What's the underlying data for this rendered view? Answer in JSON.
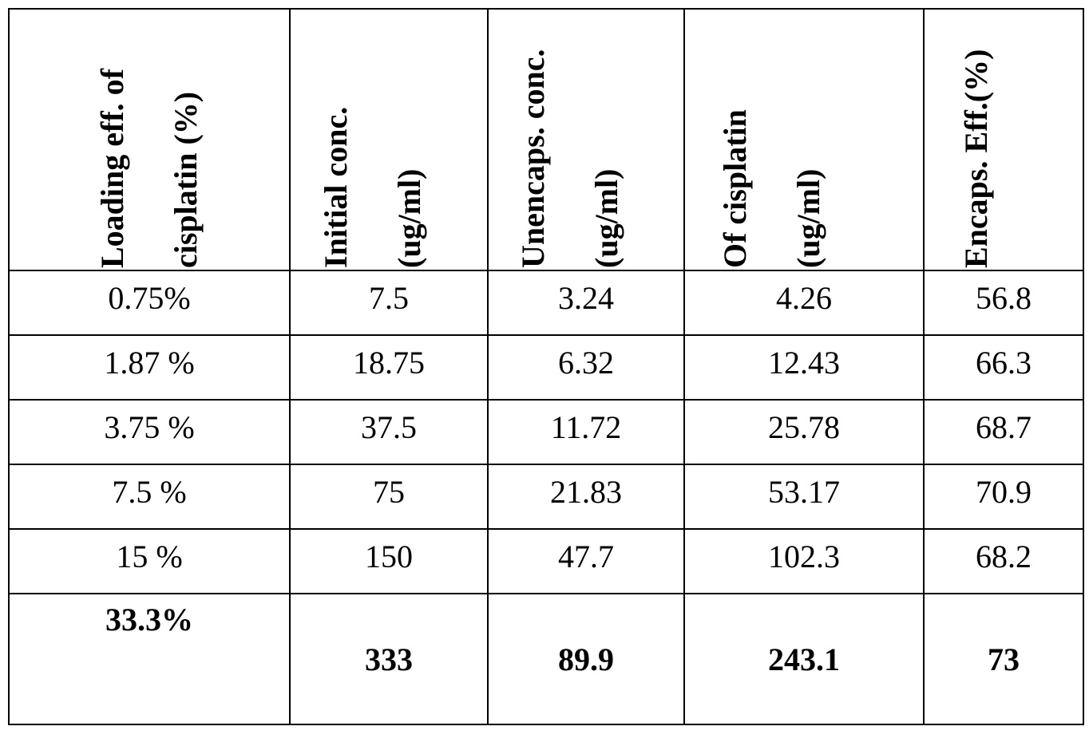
{
  "headers": [
    {
      "line1": "Loading eff. of",
      "line2": "cisplatin (%)"
    },
    {
      "line1": "Initial conc.",
      "line2": "(ug/ml)"
    },
    {
      "line1": "Unencaps. conc.",
      "line2": "(ug/ml)"
    },
    {
      "line1": "Of cisplatin",
      "line2": "(ug/ml)"
    },
    {
      "line1": "Encaps. Eff.(%)",
      "line2": ""
    }
  ],
  "rows": [
    [
      "0.75%",
      "7.5",
      "3.24",
      "4.26",
      "56.8"
    ],
    [
      "1.87 %",
      "18.75",
      "6.32",
      "12.43",
      "66.3"
    ],
    [
      "3.75 %",
      "37.5",
      "11.72",
      "25.78",
      "68.7"
    ],
    [
      "7.5 %",
      "75",
      "21.83",
      "53.17",
      "70.9"
    ],
    [
      "15 %",
      "150",
      "47.7",
      "102.3",
      "68.2"
    ],
    [
      "33.3%",
      "333",
      "89.9",
      "243.1",
      "73"
    ]
  ]
}
